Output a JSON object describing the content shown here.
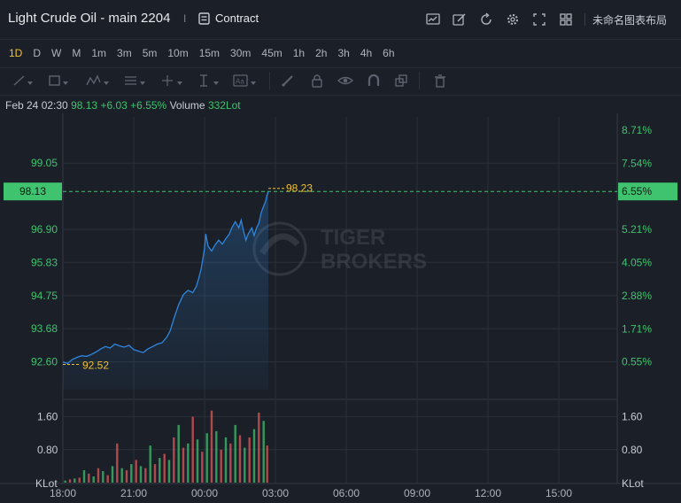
{
  "header": {
    "title": "Light  Crude Oil - main 2204",
    "separator": "I",
    "contract_label": "Contract",
    "layout_label": "未命名图表布局",
    "icons": [
      "chart-type-icon",
      "edit-icon",
      "refresh-icon",
      "settings-icon",
      "fullscreen-icon",
      "layout-grid-icon"
    ]
  },
  "periods": [
    "1D",
    "D",
    "W",
    "M",
    "1m",
    "3m",
    "5m",
    "10m",
    "15m",
    "30m",
    "45m",
    "1h",
    "2h",
    "3h",
    "4h",
    "6h"
  ],
  "active_period": "1D",
  "drawing_tools": [
    "line-tool-icon",
    "shape-tool-icon",
    "pattern-tool-icon",
    "fib-tool-icon",
    "position-tool-icon",
    "text-cursor-tool-icon",
    "text-label-tool-icon",
    "brush-icon",
    "lock-icon",
    "eye-icon",
    "magnet-icon",
    "layers-icon",
    "trash-icon"
  ],
  "info": {
    "time": "Feb 24 02:30",
    "price": "98.13",
    "change": "+6.03",
    "change_pct": "+6.55%",
    "volume_label": "Volume",
    "volume_value": "332Lot"
  },
  "watermark": {
    "line1": "TIGER",
    "line2": "BROKERS"
  },
  "colors": {
    "background": "#1b1f27",
    "grid": "#2a303a",
    "price_line": "#2e86de",
    "up": "#3fc36f",
    "down": "#e05a5a",
    "marker": "#f2c12e",
    "current_tag": "#3fc36f"
  },
  "chart_data": {
    "type": "line",
    "x_ticks": [
      "18:00",
      "21:00",
      "00:00",
      "03:00",
      "06:00",
      "09:00",
      "12:00",
      "15:00"
    ],
    "y_left_ticks": [
      "99.05",
      "96.90",
      "95.83",
      "94.75",
      "93.68",
      "92.60"
    ],
    "y_right_ticks": [
      "8.71%",
      "7.54%",
      "5.21%",
      "4.05%",
      "2.88%",
      "1.71%",
      "0.55%"
    ],
    "current_price": "98.13",
    "current_pct": "6.55%",
    "high_label": "98.23",
    "low_label": "92.52",
    "volume_ticks": [
      "1.60",
      "0.80"
    ],
    "volume_unit": "KLot",
    "ylim": [
      91.7,
      100.55
    ],
    "series": [
      {
        "values": [
          [
            18.0,
            92.6
          ],
          [
            18.2,
            92.55
          ],
          [
            18.4,
            92.68
          ],
          [
            18.6,
            92.75
          ],
          [
            18.8,
            92.8
          ],
          [
            19.0,
            92.78
          ],
          [
            19.2,
            92.84
          ],
          [
            19.4,
            92.92
          ],
          [
            19.6,
            93.02
          ],
          [
            19.8,
            93.1
          ],
          [
            20.0,
            93.05
          ],
          [
            20.2,
            93.18
          ],
          [
            20.4,
            93.12
          ],
          [
            20.6,
            93.08
          ],
          [
            20.8,
            93.14
          ],
          [
            21.0,
            93.0
          ],
          [
            21.2,
            92.95
          ],
          [
            21.4,
            92.9
          ],
          [
            21.6,
            93.02
          ],
          [
            21.8,
            93.1
          ],
          [
            22.0,
            93.18
          ],
          [
            22.2,
            93.22
          ],
          [
            22.4,
            93.4
          ],
          [
            22.55,
            93.62
          ],
          [
            22.7,
            94.0
          ],
          [
            22.9,
            94.45
          ],
          [
            23.1,
            94.78
          ],
          [
            23.3,
            94.92
          ],
          [
            23.5,
            94.85
          ],
          [
            23.65,
            95.05
          ],
          [
            23.75,
            95.3
          ],
          [
            23.85,
            95.6
          ],
          [
            23.95,
            96.05
          ],
          [
            24.0,
            96.3
          ],
          [
            24.05,
            96.75
          ],
          [
            24.15,
            96.35
          ],
          [
            24.3,
            96.2
          ],
          [
            24.45,
            96.4
          ],
          [
            24.6,
            96.55
          ],
          [
            24.75,
            96.42
          ],
          [
            24.9,
            96.6
          ],
          [
            25.05,
            96.75
          ],
          [
            25.15,
            96.95
          ],
          [
            25.3,
            97.15
          ],
          [
            25.45,
            96.95
          ],
          [
            25.55,
            97.2
          ],
          [
            25.65,
            96.85
          ],
          [
            25.75,
            96.55
          ],
          [
            25.85,
            96.75
          ],
          [
            26.0,
            96.95
          ],
          [
            26.1,
            96.7
          ],
          [
            26.2,
            96.95
          ],
          [
            26.3,
            97.1
          ],
          [
            26.4,
            97.45
          ],
          [
            26.5,
            97.65
          ],
          [
            26.58,
            97.8
          ],
          [
            26.64,
            98.0
          ],
          [
            26.7,
            98.13
          ]
        ]
      }
    ],
    "volume": [
      [
        18.1,
        0.05
      ],
      [
        18.3,
        0.08
      ],
      [
        18.5,
        0.1
      ],
      [
        18.7,
        0.12
      ],
      [
        18.9,
        0.3
      ],
      [
        19.1,
        0.22
      ],
      [
        19.3,
        0.15
      ],
      [
        19.5,
        0.35
      ],
      [
        19.7,
        0.28
      ],
      [
        19.9,
        0.18
      ],
      [
        20.1,
        0.4
      ],
      [
        20.3,
        0.95
      ],
      [
        20.5,
        0.35
      ],
      [
        20.7,
        0.3
      ],
      [
        20.9,
        0.45
      ],
      [
        21.1,
        0.55
      ],
      [
        21.3,
        0.4
      ],
      [
        21.5,
        0.35
      ],
      [
        21.7,
        0.9
      ],
      [
        21.9,
        0.45
      ],
      [
        22.1,
        0.6
      ],
      [
        22.3,
        0.7
      ],
      [
        22.5,
        0.55
      ],
      [
        22.7,
        1.1
      ],
      [
        22.9,
        1.4
      ],
      [
        23.1,
        0.85
      ],
      [
        23.3,
        0.95
      ],
      [
        23.5,
        1.6
      ],
      [
        23.7,
        1.05
      ],
      [
        23.9,
        0.75
      ],
      [
        24.1,
        1.2
      ],
      [
        24.3,
        1.75
      ],
      [
        24.5,
        1.25
      ],
      [
        24.7,
        0.8
      ],
      [
        24.9,
        1.1
      ],
      [
        25.1,
        0.95
      ],
      [
        25.3,
        1.4
      ],
      [
        25.5,
        1.15
      ],
      [
        25.7,
        0.85
      ],
      [
        25.9,
        1.1
      ],
      [
        26.1,
        1.3
      ],
      [
        26.3,
        1.7
      ],
      [
        26.5,
        1.5
      ],
      [
        26.65,
        0.9
      ]
    ]
  }
}
